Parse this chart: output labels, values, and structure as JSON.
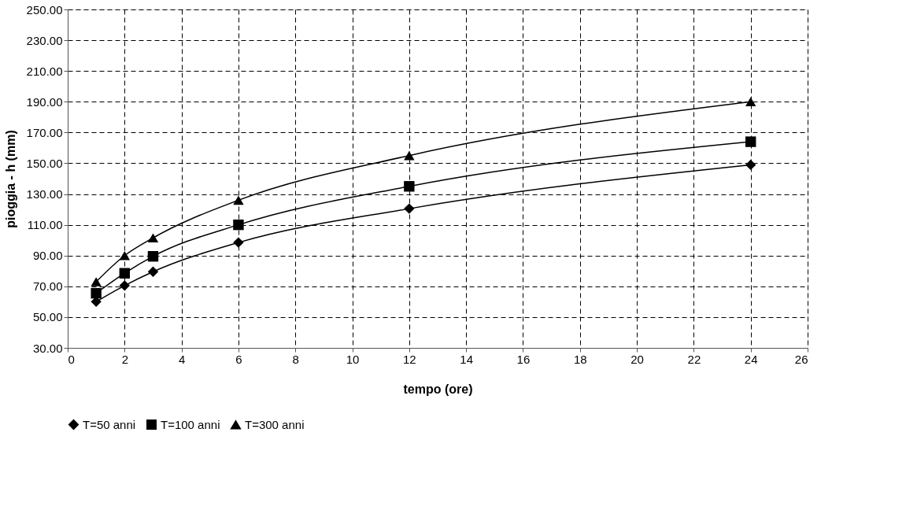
{
  "chart_data": {
    "type": "line",
    "xlabel": "tempo (ore)",
    "ylabel": "pioggia - h (mm)",
    "x": [
      1,
      2,
      3,
      6,
      12,
      24
    ],
    "series": [
      {
        "name": "T=50 anni",
        "color": "#000000",
        "marker": "diamond",
        "values": [
          60,
          70.5,
          79.5,
          98.5,
          120.5,
          149
        ]
      },
      {
        "name": "T=100 anni",
        "color": "#000000",
        "marker": "square",
        "values": [
          65.5,
          78.5,
          89.5,
          110,
          135,
          164
        ]
      },
      {
        "name": "T=300 anni",
        "color": "#000000",
        "marker": "triangle",
        "values": [
          73,
          90,
          101.5,
          126,
          155,
          190
        ]
      }
    ],
    "xlim": [
      0,
      26
    ],
    "xticks": [
      0,
      2,
      4,
      6,
      8,
      10,
      12,
      14,
      16,
      18,
      20,
      22,
      24,
      26
    ],
    "ylim": [
      30,
      250
    ],
    "yticks": [
      {
        "value": 30,
        "label": "30.00"
      },
      {
        "value": 50,
        "label": "50.00"
      },
      {
        "value": 70,
        "label": "70.00"
      },
      {
        "value": 90,
        "label": "90.00"
      },
      {
        "value": 110,
        "label": "110.00"
      },
      {
        "value": 130,
        "label": "130.00"
      },
      {
        "value": 150,
        "label": "150.00"
      },
      {
        "value": 170,
        "label": "170.00"
      },
      {
        "value": 190,
        "label": "190.00"
      },
      {
        "value": 210,
        "label": "210.00"
      },
      {
        "value": 230,
        "label": "230.00"
      },
      {
        "value": 250,
        "label": "250.00"
      }
    ],
    "grid": true,
    "legend": "bottom",
    "line_style": "solid"
  }
}
